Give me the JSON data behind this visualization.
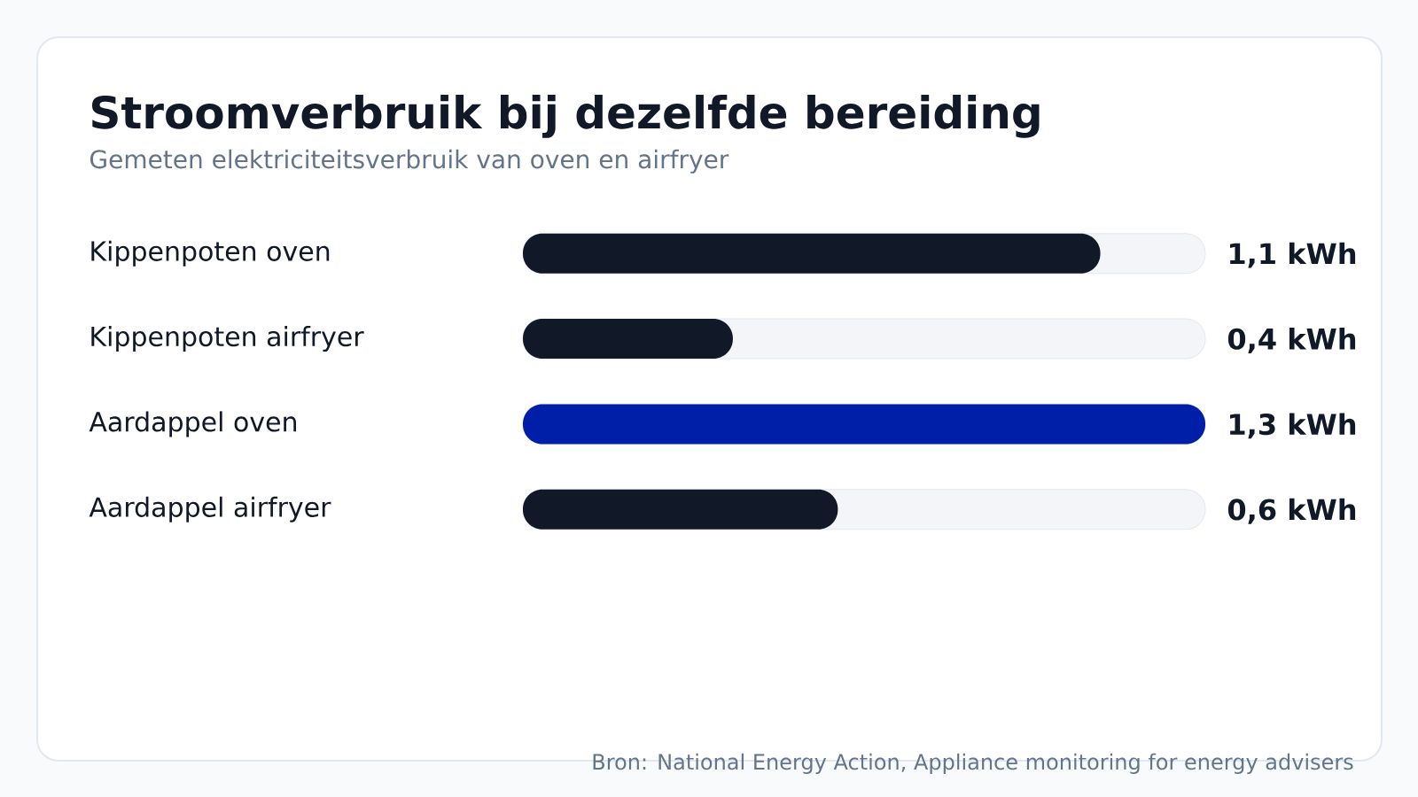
{
  "chart_data": {
    "type": "bar",
    "orientation": "horizontal",
    "title": "Stroomverbruik bij dezelfde bereiding",
    "subtitle": "Gemeten elektriciteitsverbruik van oven en airfryer",
    "categories": [
      "Kippenpoten oven",
      "Kippenpoten airfryer",
      "Aardappel oven",
      "Aardappel airfryer"
    ],
    "values": [
      1.1,
      0.4,
      1.3,
      0.6
    ],
    "colors": [
      "#111827",
      "#111827",
      "#001fa8",
      "#111827"
    ],
    "value_labels": [
      "1,1 kWh",
      "0,4 kWh",
      "1,3 kWh",
      "0,6 kWh"
    ],
    "annotations": [
      "Bron: National Energy Action, Appliance monitoring for energy advisers"
    ]
  }
}
